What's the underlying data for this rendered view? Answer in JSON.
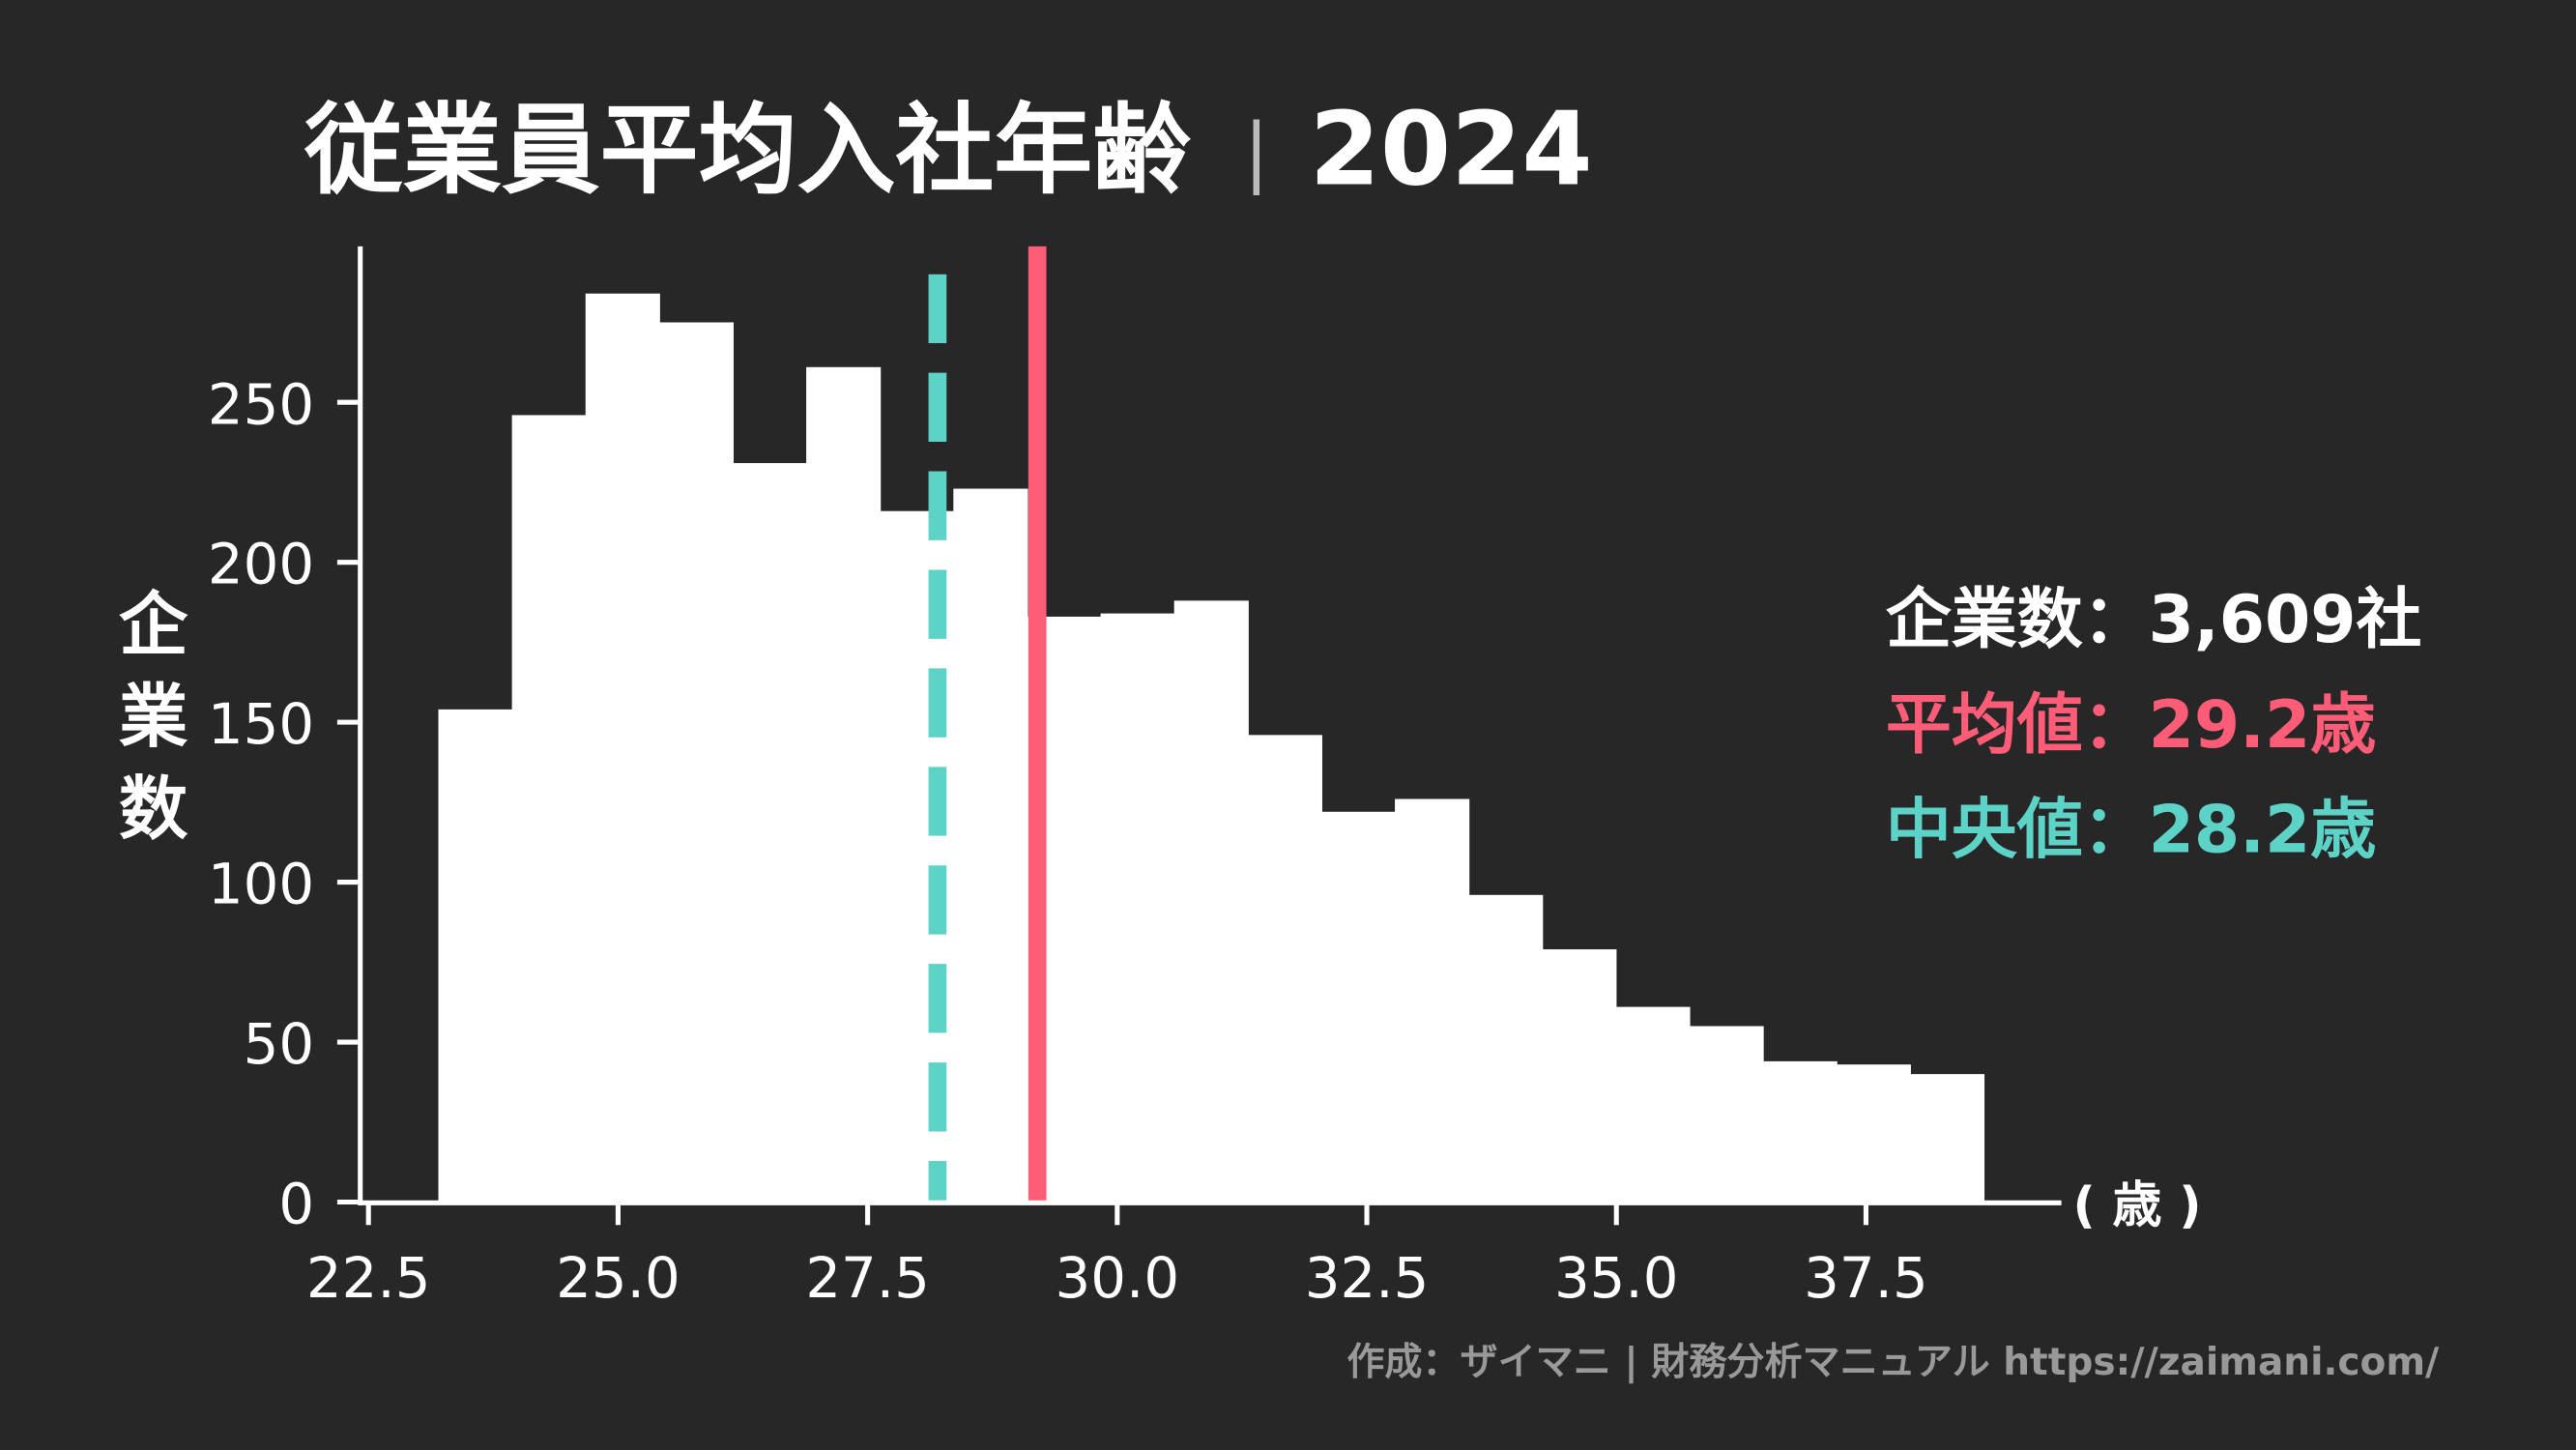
{
  "chart_data": {
    "type": "bar",
    "title": "従業員平均入社年齢",
    "title_separator": "|",
    "title_year": "2024",
    "xlabel": "( 歳 )",
    "ylabel": "企業数",
    "xlim": [
      22.3,
      40.0
    ],
    "ylim": [
      0,
      298
    ],
    "xticks": [
      22.5,
      25.0,
      27.5,
      30.0,
      32.5,
      35.0,
      37.5
    ],
    "xtick_labels": [
      "22.5",
      "25.0",
      "27.5",
      "30.0",
      "32.5",
      "35.0",
      "37.5"
    ],
    "yticks": [
      0,
      50,
      100,
      150,
      200,
      250
    ],
    "ytick_labels": [
      "0",
      "50",
      "100",
      "150",
      "200",
      "250"
    ],
    "bin_start": 23.2,
    "bin_width": 0.737,
    "values": [
      154,
      246,
      284,
      275,
      231,
      261,
      216,
      223,
      183,
      184,
      188,
      146,
      122,
      126,
      96,
      79,
      61,
      55,
      44,
      43,
      40
    ],
    "bar_color": "#ffffff",
    "mean": {
      "value": 29.2,
      "color": "#ff5c77",
      "style": "solid"
    },
    "median": {
      "value": 28.2,
      "color": "#5dd3c8",
      "style": "dashed"
    },
    "annotations": [
      {
        "label": "企業数",
        "sep": "：",
        "value": "3,609社",
        "color": "#ffffff"
      },
      {
        "label": "平均値",
        "sep": "：",
        "value": "29.2歳",
        "color": "#ff5c77"
      },
      {
        "label": "中央値",
        "sep": "：",
        "value": "28.2歳",
        "color": "#5dd3c8"
      }
    ],
    "grid": false,
    "background": "#272727"
  },
  "footer": {
    "credit": "作成：ザイマニ | 財務分析マニュアル https://zaimani.com/"
  }
}
